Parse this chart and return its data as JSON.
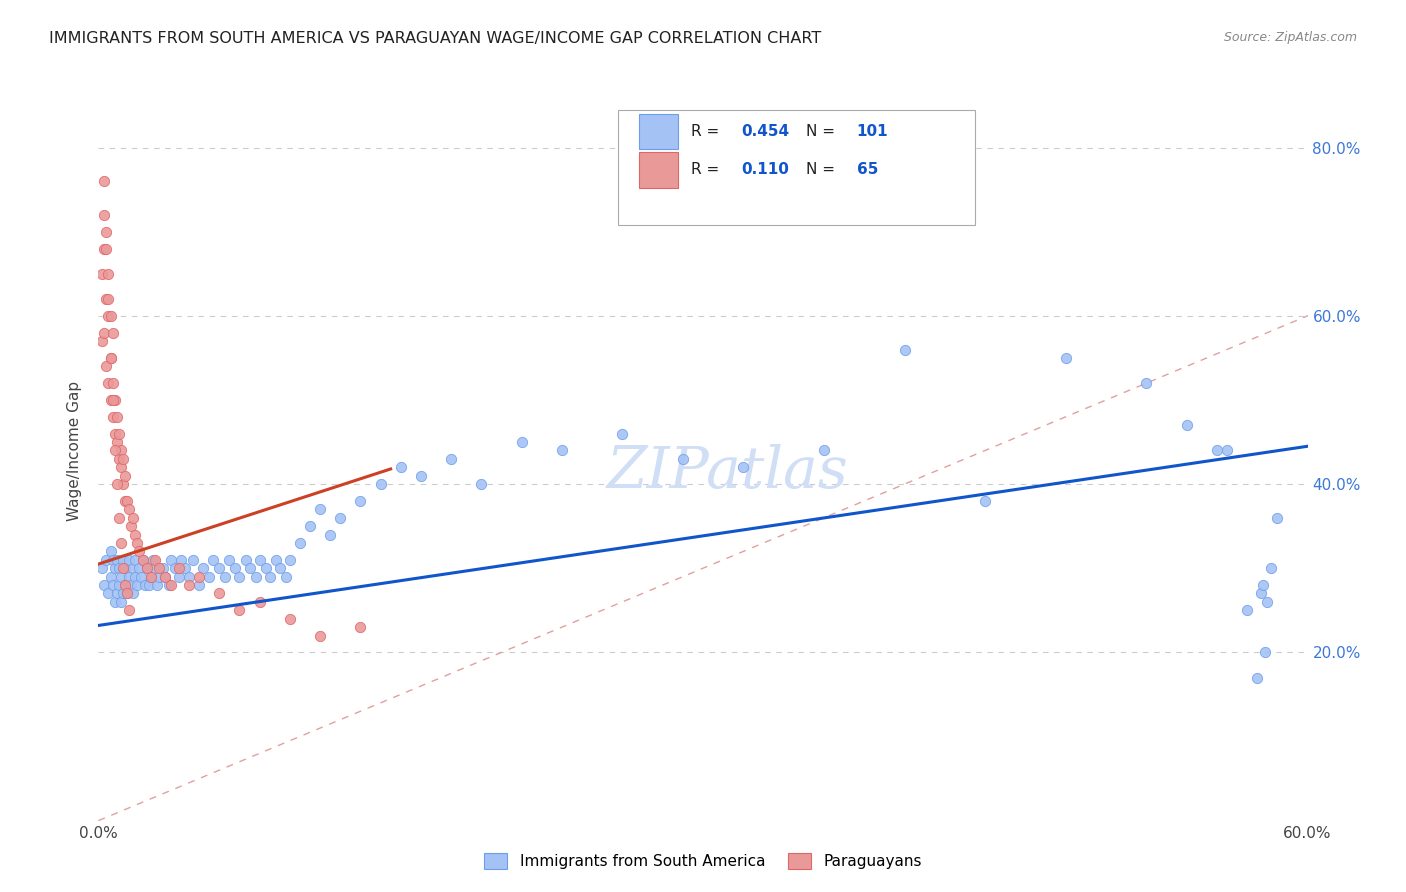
{
  "title": "IMMIGRANTS FROM SOUTH AMERICA VS PARAGUAYAN WAGE/INCOME GAP CORRELATION CHART",
  "source": "Source: ZipAtlas.com",
  "ylabel": "Wage/Income Gap",
  "R1": "0.454",
  "N1": "101",
  "R2": "0.110",
  "N2": "65",
  "color_blue_fill": "#a4c2f4",
  "color_blue_edge": "#6d9eeb",
  "color_pink_fill": "#ea9999",
  "color_pink_edge": "#e06666",
  "color_line_blue": "#1155cc",
  "color_line_pink": "#cc4125",
  "color_diag": "#ea9999",
  "color_grid": "#cccccc",
  "watermark_color": "#d0dff5",
  "xlim": [
    0.0,
    0.6
  ],
  "ylim": [
    0.0,
    0.88
  ],
  "blue_trend_x": [
    0.0,
    0.6
  ],
  "blue_trend_y": [
    0.232,
    0.445
  ],
  "pink_trend_x": [
    0.0,
    0.145
  ],
  "pink_trend_y": [
    0.305,
    0.418
  ],
  "blue_x": [
    0.002,
    0.003,
    0.004,
    0.005,
    0.006,
    0.006,
    0.007,
    0.007,
    0.008,
    0.008,
    0.009,
    0.009,
    0.01,
    0.01,
    0.011,
    0.011,
    0.012,
    0.012,
    0.013,
    0.013,
    0.014,
    0.015,
    0.015,
    0.016,
    0.017,
    0.017,
    0.018,
    0.018,
    0.019,
    0.02,
    0.021,
    0.022,
    0.023,
    0.024,
    0.025,
    0.026,
    0.027,
    0.028,
    0.029,
    0.03,
    0.032,
    0.033,
    0.035,
    0.036,
    0.038,
    0.04,
    0.041,
    0.043,
    0.045,
    0.047,
    0.05,
    0.052,
    0.055,
    0.057,
    0.06,
    0.063,
    0.065,
    0.068,
    0.07,
    0.073,
    0.075,
    0.078,
    0.08,
    0.083,
    0.085,
    0.088,
    0.09,
    0.093,
    0.095,
    0.1,
    0.105,
    0.11,
    0.115,
    0.12,
    0.13,
    0.14,
    0.15,
    0.16,
    0.175,
    0.19,
    0.21,
    0.23,
    0.26,
    0.29,
    0.32,
    0.36,
    0.4,
    0.44,
    0.48,
    0.52,
    0.54,
    0.555,
    0.56,
    0.57,
    0.575,
    0.577,
    0.578,
    0.579,
    0.58,
    0.582,
    0.585
  ],
  "blue_y": [
    0.3,
    0.28,
    0.31,
    0.27,
    0.29,
    0.32,
    0.28,
    0.31,
    0.26,
    0.3,
    0.27,
    0.31,
    0.28,
    0.3,
    0.26,
    0.29,
    0.27,
    0.31,
    0.28,
    0.3,
    0.27,
    0.29,
    0.31,
    0.28,
    0.3,
    0.27,
    0.29,
    0.31,
    0.28,
    0.3,
    0.29,
    0.31,
    0.28,
    0.3,
    0.28,
    0.29,
    0.31,
    0.3,
    0.28,
    0.29,
    0.3,
    0.29,
    0.28,
    0.31,
    0.3,
    0.29,
    0.31,
    0.3,
    0.29,
    0.31,
    0.28,
    0.3,
    0.29,
    0.31,
    0.3,
    0.29,
    0.31,
    0.3,
    0.29,
    0.31,
    0.3,
    0.29,
    0.31,
    0.3,
    0.29,
    0.31,
    0.3,
    0.29,
    0.31,
    0.33,
    0.35,
    0.37,
    0.34,
    0.36,
    0.38,
    0.4,
    0.42,
    0.41,
    0.43,
    0.4,
    0.45,
    0.44,
    0.46,
    0.43,
    0.42,
    0.44,
    0.56,
    0.38,
    0.55,
    0.52,
    0.47,
    0.44,
    0.44,
    0.25,
    0.17,
    0.27,
    0.28,
    0.2,
    0.26,
    0.3,
    0.36
  ],
  "pink_x": [
    0.002,
    0.002,
    0.003,
    0.003,
    0.003,
    0.004,
    0.004,
    0.004,
    0.005,
    0.005,
    0.005,
    0.006,
    0.006,
    0.006,
    0.007,
    0.007,
    0.007,
    0.008,
    0.008,
    0.009,
    0.009,
    0.01,
    0.01,
    0.011,
    0.011,
    0.012,
    0.012,
    0.013,
    0.013,
    0.014,
    0.015,
    0.016,
    0.017,
    0.018,
    0.019,
    0.02,
    0.022,
    0.024,
    0.026,
    0.028,
    0.03,
    0.033,
    0.036,
    0.04,
    0.045,
    0.05,
    0.06,
    0.07,
    0.08,
    0.095,
    0.11,
    0.13,
    0.003,
    0.004,
    0.005,
    0.006,
    0.007,
    0.008,
    0.009,
    0.01,
    0.011,
    0.012,
    0.013,
    0.014,
    0.015
  ],
  "pink_y": [
    0.57,
    0.65,
    0.58,
    0.68,
    0.72,
    0.54,
    0.62,
    0.68,
    0.52,
    0.6,
    0.65,
    0.5,
    0.55,
    0.6,
    0.48,
    0.52,
    0.58,
    0.46,
    0.5,
    0.45,
    0.48,
    0.43,
    0.46,
    0.42,
    0.44,
    0.4,
    0.43,
    0.38,
    0.41,
    0.38,
    0.37,
    0.35,
    0.36,
    0.34,
    0.33,
    0.32,
    0.31,
    0.3,
    0.29,
    0.31,
    0.3,
    0.29,
    0.28,
    0.3,
    0.28,
    0.29,
    0.27,
    0.25,
    0.26,
    0.24,
    0.22,
    0.23,
    0.76,
    0.7,
    0.62,
    0.55,
    0.5,
    0.44,
    0.4,
    0.36,
    0.33,
    0.3,
    0.28,
    0.27,
    0.25
  ]
}
